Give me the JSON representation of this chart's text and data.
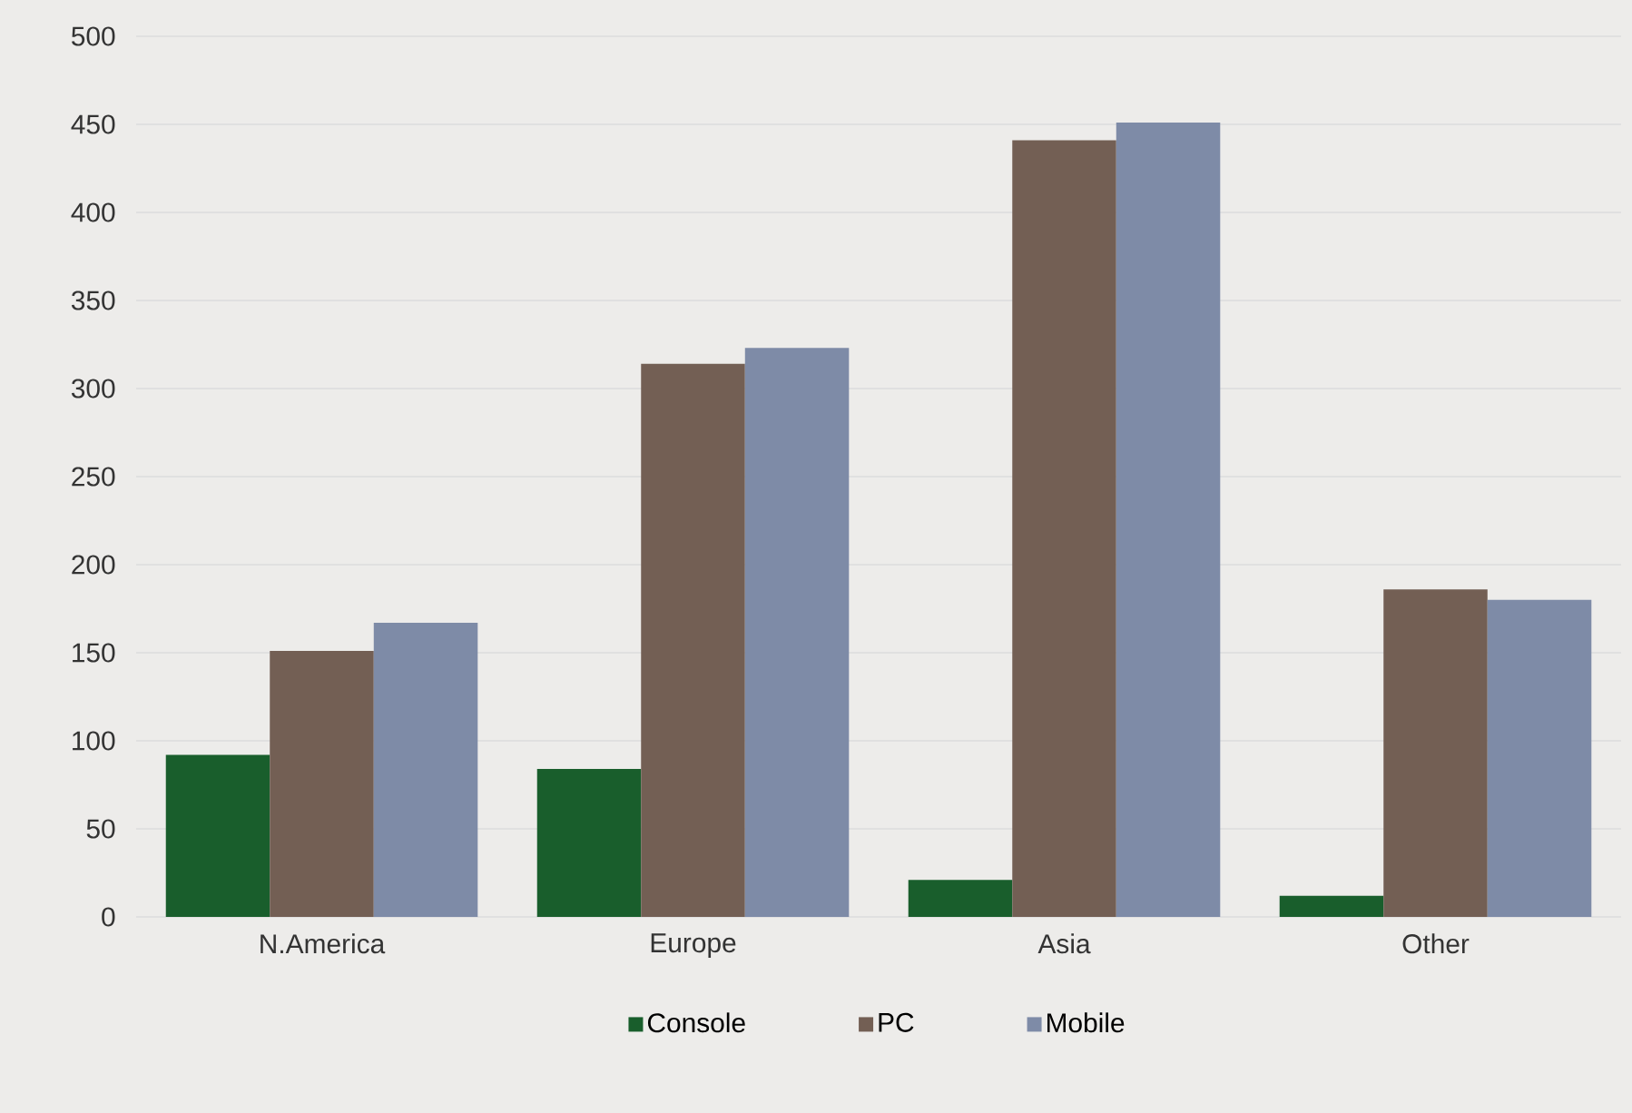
{
  "chart_data": {
    "type": "bar",
    "categories": [
      "N.America",
      "Europe",
      "Asia",
      "Other"
    ],
    "series": [
      {
        "name": "Console",
        "color": "#195e2c",
        "values": [
          92,
          84,
          21,
          12
        ]
      },
      {
        "name": "PC",
        "color": "#735f54",
        "values": [
          151,
          314,
          441,
          186
        ]
      },
      {
        "name": "Mobile",
        "color": "#7e8ba7",
        "values": [
          167,
          323,
          451,
          180
        ]
      }
    ],
    "ylim": [
      0,
      500
    ],
    "yticks": [
      0,
      50,
      100,
      150,
      200,
      250,
      300,
      350,
      400,
      450,
      500
    ],
    "grid": "y",
    "legend": "bottom"
  }
}
